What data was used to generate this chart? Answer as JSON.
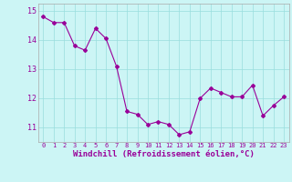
{
  "x": [
    0,
    1,
    2,
    3,
    4,
    5,
    6,
    7,
    8,
    9,
    10,
    11,
    12,
    13,
    14,
    15,
    16,
    17,
    18,
    19,
    20,
    21,
    22,
    23
  ],
  "y": [
    14.8,
    14.6,
    14.6,
    13.8,
    13.65,
    14.4,
    14.05,
    13.1,
    11.55,
    11.45,
    11.1,
    11.2,
    11.1,
    10.75,
    10.85,
    12.0,
    12.35,
    12.2,
    12.05,
    12.05,
    12.45,
    11.4,
    11.75,
    12.05
  ],
  "line_color": "#990099",
  "marker": "D",
  "markersize": 2,
  "linewidth": 0.8,
  "bg_color": "#ccf5f5",
  "grid_color": "#99dddd",
  "xlabel": "Windchill (Refroidissement éolien,°C)",
  "xlabel_color": "#990099",
  "xlabel_fontsize": 6.5,
  "ylabel_ticks": [
    11,
    12,
    13,
    14,
    15
  ],
  "xlim": [
    -0.5,
    23.5
  ],
  "ylim": [
    10.5,
    15.25
  ],
  "xtick_fontsize": 5,
  "ytick_fontsize": 6,
  "tick_color": "#990099"
}
